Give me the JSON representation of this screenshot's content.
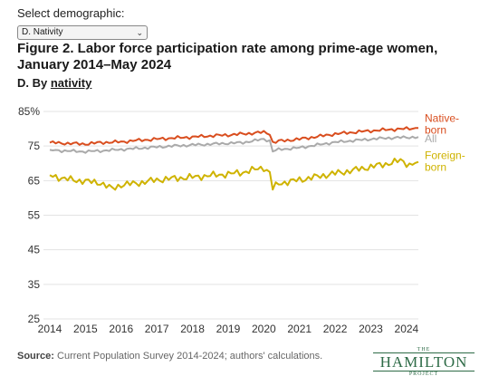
{
  "controls": {
    "select_label": "Select demographic:",
    "select_value": "D. Nativity",
    "chevron_icon": "chevron-down-icon"
  },
  "header": {
    "title": "Figure 2. Labor force participation rate among prime-age women, January 2014–May 2024",
    "subtitle_prefix": "D. By ",
    "subtitle_link": "nativity"
  },
  "footer": {
    "source_label": "Source:",
    "source_text": " Current Population Survey 2014-2024; authors' calculations.",
    "logo_the": "THE",
    "logo_name": "HAMILTON",
    "logo_project": "PROJECT"
  },
  "chart_data": {
    "type": "line",
    "x_start": "2014-01",
    "x_end": "2024-05",
    "xticks": [
      "2014",
      "2015",
      "2016",
      "2017",
      "2018",
      "2019",
      "2020",
      "2021",
      "2022",
      "2023",
      "2024"
    ],
    "yticks": [
      "85%",
      "75",
      "65",
      "55",
      "45",
      "35",
      "25"
    ],
    "ylim": [
      25,
      85
    ],
    "grid": true,
    "series": [
      {
        "name": "Native-born",
        "label_lines": [
          "Native-",
          "born"
        ],
        "color": "#d94e1f",
        "keypoints": [
          [
            "2014-01",
            76.0
          ],
          [
            "2014-06",
            75.8
          ],
          [
            "2015-01",
            75.6
          ],
          [
            "2015-06",
            76.0
          ],
          [
            "2016-01",
            76.2
          ],
          [
            "2016-06",
            76.6
          ],
          [
            "2017-01",
            77.0
          ],
          [
            "2017-06",
            77.3
          ],
          [
            "2018-01",
            77.6
          ],
          [
            "2018-06",
            77.9
          ],
          [
            "2019-01",
            78.2
          ],
          [
            "2019-06",
            78.5
          ],
          [
            "2020-01",
            79.0
          ],
          [
            "2020-03",
            78.6
          ],
          [
            "2020-04",
            76.0
          ],
          [
            "2020-06",
            76.4
          ],
          [
            "2021-01",
            77.0
          ],
          [
            "2021-06",
            77.6
          ],
          [
            "2022-01",
            78.5
          ],
          [
            "2022-06",
            78.9
          ],
          [
            "2023-01",
            79.4
          ],
          [
            "2023-06",
            79.7
          ],
          [
            "2024-01",
            80.0
          ],
          [
            "2024-05",
            80.2
          ]
        ]
      },
      {
        "name": "All",
        "label_lines": [
          "All"
        ],
        "color": "#aaaaaa",
        "keypoints": [
          [
            "2014-01",
            73.9
          ],
          [
            "2014-06",
            73.6
          ],
          [
            "2015-01",
            73.4
          ],
          [
            "2015-06",
            73.6
          ],
          [
            "2016-01",
            74.0
          ],
          [
            "2016-06",
            74.3
          ],
          [
            "2017-01",
            74.7
          ],
          [
            "2017-06",
            75.0
          ],
          [
            "2018-01",
            75.3
          ],
          [
            "2018-06",
            75.5
          ],
          [
            "2019-01",
            75.8
          ],
          [
            "2019-06",
            76.0
          ],
          [
            "2020-01",
            77.0
          ],
          [
            "2020-03",
            76.5
          ],
          [
            "2020-04",
            73.5
          ],
          [
            "2020-06",
            74.0
          ],
          [
            "2021-01",
            74.5
          ],
          [
            "2021-06",
            75.2
          ],
          [
            "2022-01",
            76.1
          ],
          [
            "2022-06",
            76.5
          ],
          [
            "2023-01",
            77.0
          ],
          [
            "2023-06",
            77.3
          ],
          [
            "2024-01",
            77.5
          ],
          [
            "2024-05",
            77.6
          ]
        ]
      },
      {
        "name": "Foreign-born",
        "label_lines": [
          "Foreign-",
          "born"
        ],
        "color": "#cfb300",
        "keypoints": [
          [
            "2014-01",
            66.6
          ],
          [
            "2014-06",
            65.5
          ],
          [
            "2015-01",
            64.8
          ],
          [
            "2015-06",
            64.4
          ],
          [
            "2015-10",
            62.6
          ],
          [
            "2016-01",
            63.8
          ],
          [
            "2016-06",
            64.2
          ],
          [
            "2017-01",
            65.2
          ],
          [
            "2017-06",
            65.6
          ],
          [
            "2018-01",
            66.0
          ],
          [
            "2018-06",
            66.4
          ],
          [
            "2019-01",
            66.9
          ],
          [
            "2019-06",
            67.4
          ],
          [
            "2020-01",
            68.8
          ],
          [
            "2020-03",
            67.2
          ],
          [
            "2020-04",
            62.7
          ],
          [
            "2020-06",
            64.2
          ],
          [
            "2021-01",
            65.2
          ],
          [
            "2021-06",
            66.0
          ],
          [
            "2022-01",
            67.1
          ],
          [
            "2022-06",
            67.8
          ],
          [
            "2023-01",
            69.0
          ],
          [
            "2023-06",
            69.8
          ],
          [
            "2023-11",
            70.8
          ],
          [
            "2024-02",
            69.6
          ],
          [
            "2024-05",
            70.4
          ]
        ]
      }
    ]
  }
}
